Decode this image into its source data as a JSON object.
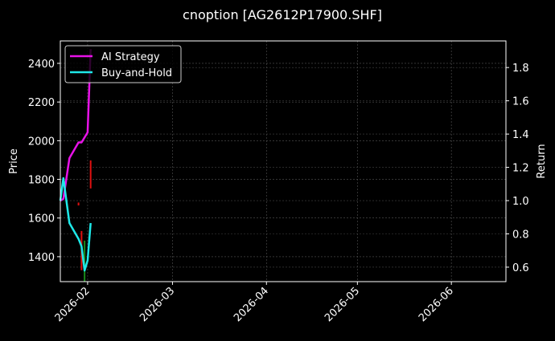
{
  "chart_data": {
    "type": "line",
    "title": "cnoption [AG2612P17900.SHF]",
    "ylabel_left": "Price",
    "ylabel_right": "Return",
    "xlim": [
      "2026-01-23",
      "2026-06-19"
    ],
    "ylim_left": [
      1271,
      2516
    ],
    "ylim_right": [
      0.513,
      1.96
    ],
    "xticks": [
      "2026-02",
      "2026-03",
      "2026-04",
      "2026-05",
      "2026-06"
    ],
    "yticks_left": [
      1400,
      1600,
      1800,
      2000,
      2200,
      2400
    ],
    "yticks_right": [
      0.6,
      0.8,
      1.0,
      1.2,
      1.4,
      1.6,
      1.8
    ],
    "grid": true,
    "legend_placement": "upper-left",
    "x": [
      "2026-01-23",
      "2026-01-24",
      "2026-01-26",
      "2026-01-29",
      "2026-01-30",
      "2026-01-31",
      "2026-02-01",
      "2026-02-02"
    ],
    "series": [
      {
        "name": "AI Strategy",
        "axis": "right",
        "color": "#e812e8",
        "values": [
          1.0,
          1.01,
          1.255,
          1.35,
          1.35,
          1.38,
          1.41,
          1.91
        ]
      },
      {
        "name": "Buy-and-Hold",
        "axis": "right",
        "color": "#1ee8e8",
        "values": [
          1.0,
          1.135,
          0.865,
          0.77,
          0.725,
          0.58,
          0.64,
          0.865
        ]
      }
    ],
    "candles": [
      {
        "date": "2026-01-29",
        "high": 1680,
        "low": 1665,
        "direction": "down"
      },
      {
        "date": "2026-01-30",
        "high": 1533,
        "low": 1330,
        "direction": "down"
      },
      {
        "date": "2026-01-31",
        "high": 1483,
        "low": 1271,
        "direction": "up"
      },
      {
        "date": "2026-02-02",
        "high": 1898,
        "low": 1753,
        "direction": "down"
      }
    ],
    "colors": {
      "up": "#1a8a1a",
      "down": "#e01010",
      "background": "#000000",
      "grid": "#555555"
    }
  }
}
